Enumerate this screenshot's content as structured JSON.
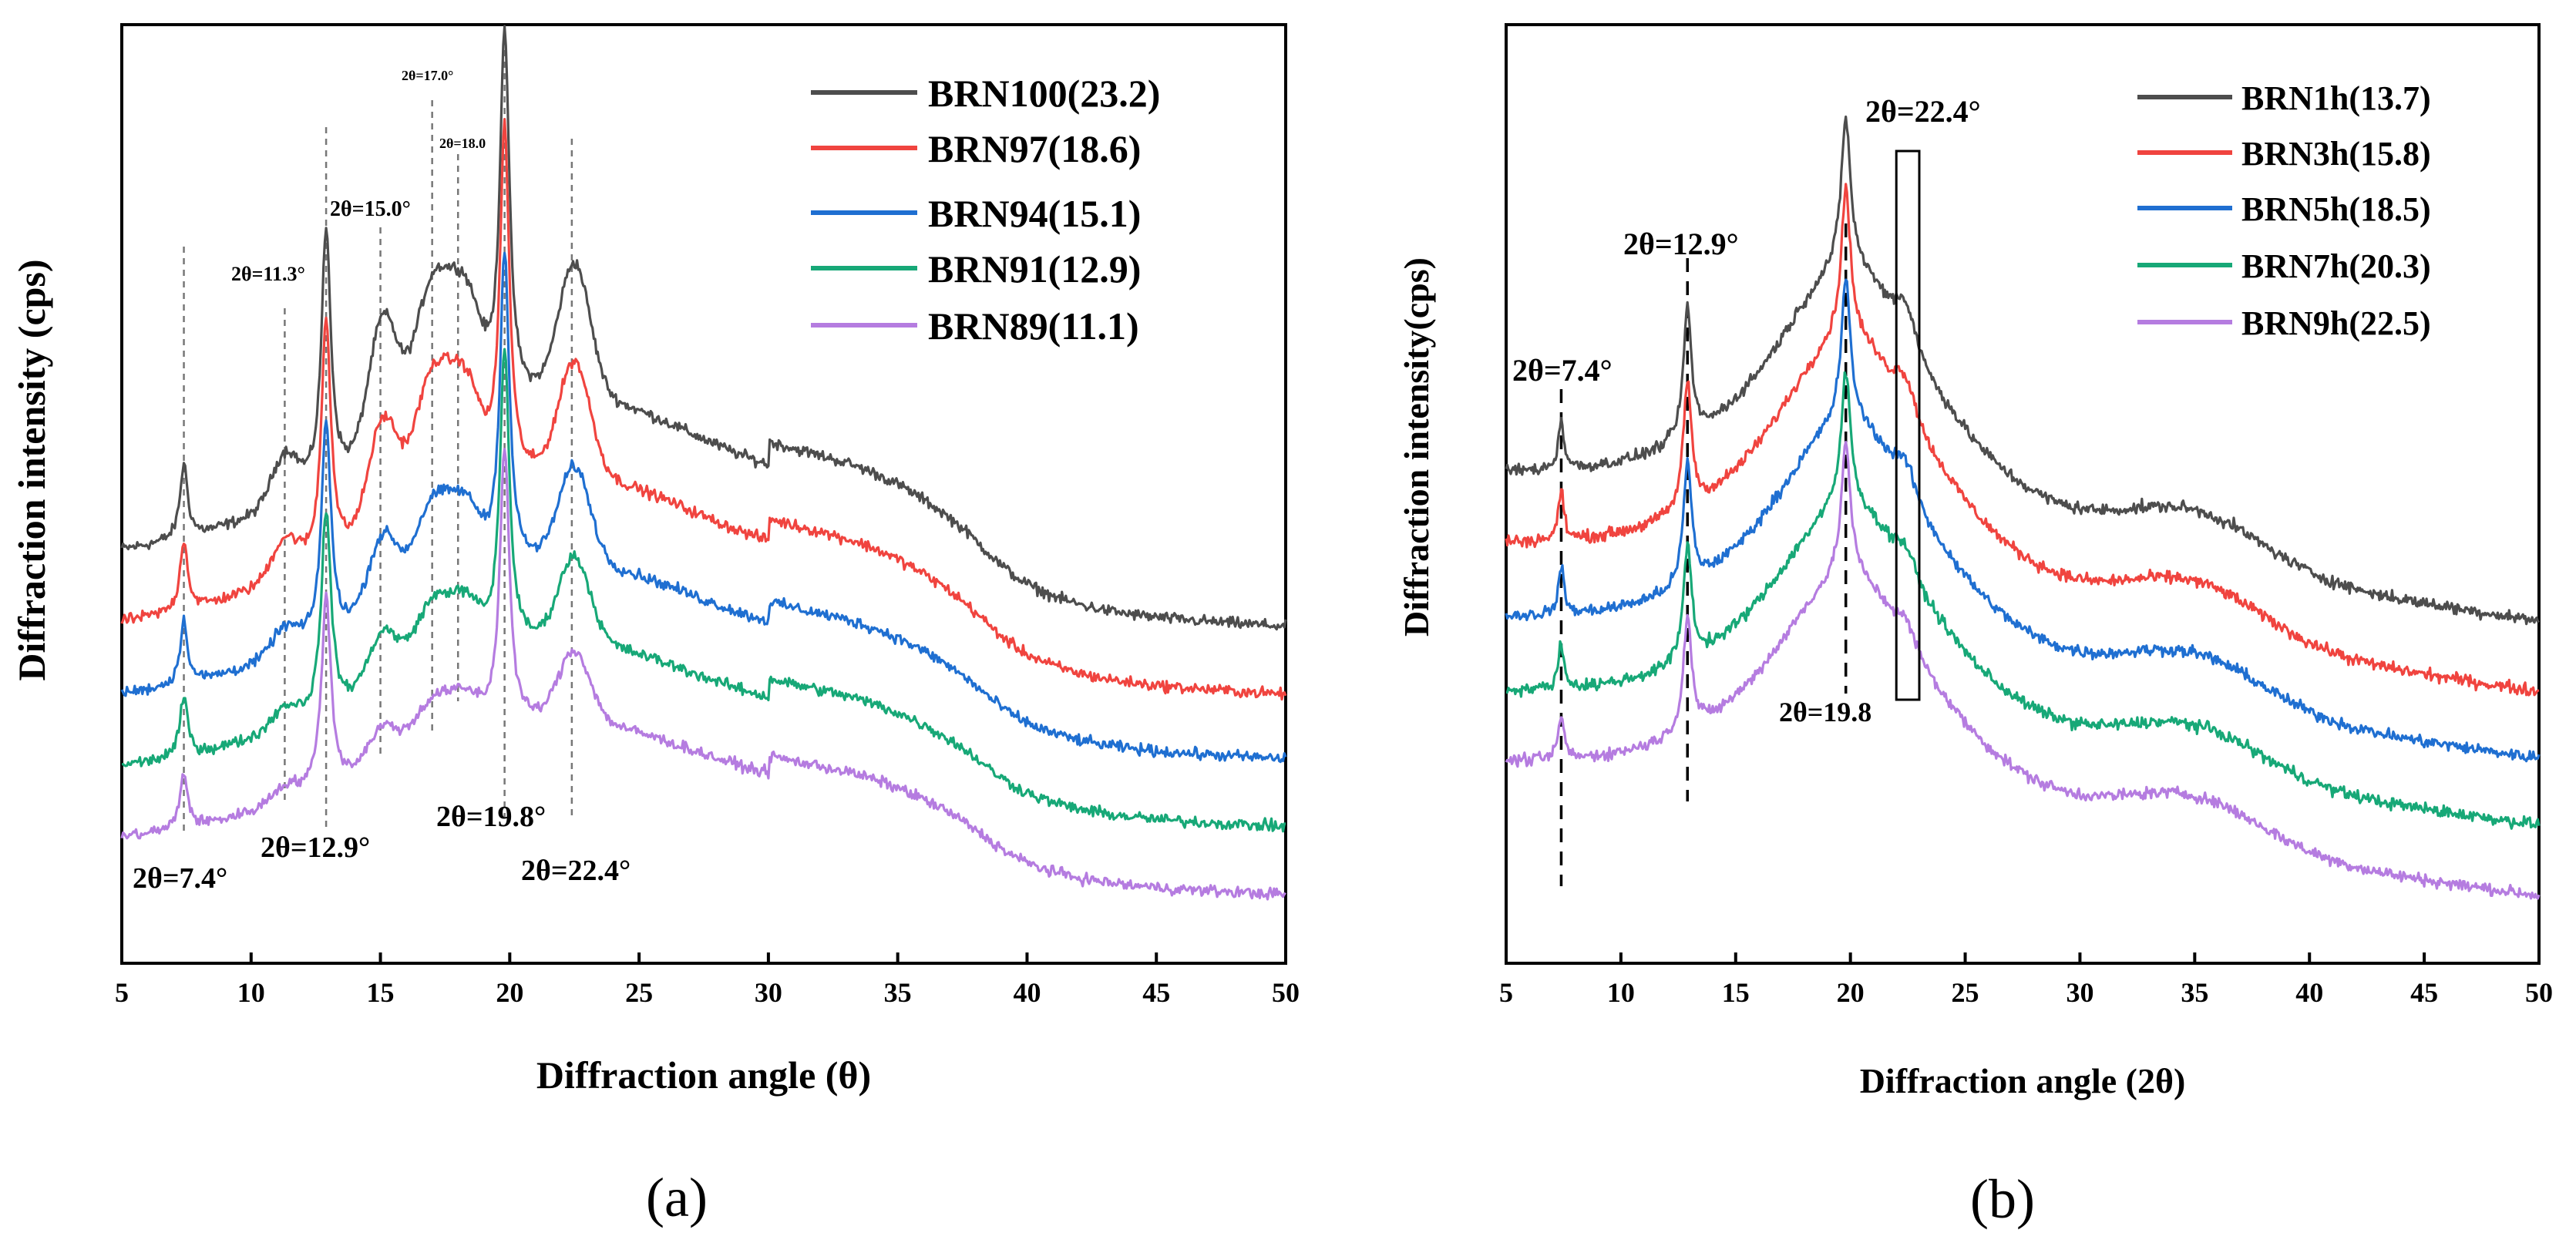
{
  "colors": {
    "gray": "#4d4d4d",
    "red": "#f0443f",
    "blue": "#1f6fd1",
    "green": "#17a877",
    "purple": "#b57ce0"
  },
  "panels": [
    {
      "id": "a",
      "label": "(a)",
      "chart_data": {
        "type": "line",
        "xlabel": "Diffraction angle (θ)",
        "ylabel": "Diffraction intensity (cps)",
        "xlim": [
          5,
          50
        ],
        "xticks": [
          "5",
          "10",
          "15",
          "20",
          "25",
          "30",
          "35",
          "40",
          "45",
          "50"
        ],
        "legend_position": "top-right",
        "series": [
          {
            "name": "BRN100(23.2)",
            "color": "#4d4d4d",
            "offset": 4,
            "scale": 1.0,
            "p11": 1.0,
            "p15": 1.0,
            "p17": 1.0,
            "p224": 1.0,
            "steps": 1.0
          },
          {
            "name": "BRN97(18.6)",
            "color": "#f0443f",
            "offset": 3,
            "scale": 0.95,
            "p11": 0.8,
            "p15": 0.85,
            "p17": 0.95,
            "p224": 0.9,
            "steps": 0.7
          },
          {
            "name": "BRN94(15.1)",
            "color": "#1f6fd1",
            "offset": 2,
            "scale": 0.85,
            "p11": 0.6,
            "p15": 0.65,
            "p17": 0.7,
            "p224": 0.85,
            "steps": 0.5
          },
          {
            "name": "BRN91(12.9)",
            "color": "#17a877",
            "offset": 1,
            "scale": 0.8,
            "p11": 0.5,
            "p15": 0.5,
            "p17": 0.55,
            "p224": 0.8,
            "steps": 0.35
          },
          {
            "name": "BRN89(11.1)",
            "color": "#b57ce0",
            "offset": 0,
            "scale": 0.75,
            "p11": 0.4,
            "p15": 0.35,
            "p17": 0.4,
            "p224": 0.7,
            "steps": 0.2
          }
        ],
        "reference_lines": [
          7.4,
          11.3,
          12.9,
          15.0,
          17.0,
          18.0,
          19.8,
          22.4
        ],
        "annotations": [
          "2θ=7.4°",
          "2θ=11.3°",
          "2θ=12.9°",
          "2θ=15.0°",
          "2θ=17.0°",
          "2θ=18.0",
          "2θ=19.8°",
          "2θ=22.4°"
        ]
      }
    },
    {
      "id": "b",
      "label": "(b)",
      "chart_data": {
        "type": "line",
        "xlabel": "Diffraction angle (2θ)",
        "ylabel": "Diffraction intensity(cps)",
        "xlim": [
          5,
          50
        ],
        "xticks": [
          "5",
          "10",
          "15",
          "20",
          "25",
          "30",
          "35",
          "40",
          "45",
          "50"
        ],
        "legend_position": "top-right",
        "series": [
          {
            "name": "BRN1h(13.7)",
            "color": "#4d4d4d",
            "offset": 4,
            "scale": 1.0,
            "p224": 1.0
          },
          {
            "name": "BRN3h(15.8)",
            "color": "#f0443f",
            "offset": 3,
            "scale": 1.0,
            "p224": 0.9
          },
          {
            "name": "BRN5h(18.5)",
            "color": "#1f6fd1",
            "offset": 2,
            "scale": 0.95,
            "p224": 0.8
          },
          {
            "name": "BRN7h(20.3)",
            "color": "#17a877",
            "offset": 1,
            "scale": 0.9,
            "p224": 0.7
          },
          {
            "name": "BRN9h(22.5)",
            "color": "#b57ce0",
            "offset": 0,
            "scale": 0.9,
            "p224": 0.6
          }
        ],
        "reference_lines": [
          7.4,
          12.9,
          19.8
        ],
        "highlight_box_x": [
          22.0,
          23.0
        ],
        "annotations": [
          "2θ=7.4°",
          "2θ=12.9°",
          "2θ=19.8",
          "2θ=22.4°"
        ]
      }
    }
  ]
}
